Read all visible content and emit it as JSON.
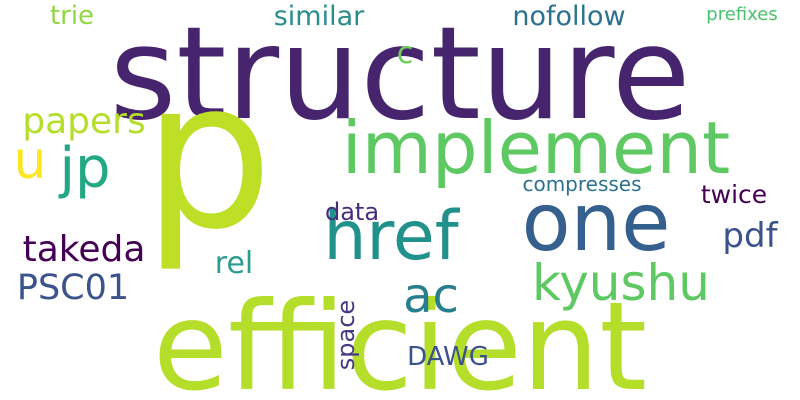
{
  "word_cloud": {
    "words": [
      {
        "text": "structure",
        "color": "#46246e"
      },
      {
        "text": "p",
        "color": "#bddf26"
      },
      {
        "text": "efficient",
        "color": "#b5de2b"
      },
      {
        "text": "implement",
        "color": "#5ec962"
      },
      {
        "text": "one",
        "color": "#355f8d"
      },
      {
        "text": "href",
        "color": "#21918c"
      },
      {
        "text": "kyushu",
        "color": "#5ec962"
      },
      {
        "text": "ac",
        "color": "#277f8e"
      },
      {
        "text": "jp",
        "color": "#22a884"
      },
      {
        "text": "papers",
        "color": "#b5de2b"
      },
      {
        "text": "takeda",
        "color": "#440154"
      },
      {
        "text": "PSC01",
        "color": "#3b528b"
      },
      {
        "text": "pdf",
        "color": "#3b528b"
      },
      {
        "text": "rel",
        "color": "#2a9d8f"
      },
      {
        "text": "data",
        "color": "#472d7b"
      },
      {
        "text": "twice",
        "color": "#440154"
      },
      {
        "text": "compresses",
        "color": "#2c728e"
      },
      {
        "text": "nofollow",
        "color": "#2c728e"
      },
      {
        "text": "similar",
        "color": "#2a8c8c"
      },
      {
        "text": "trie",
        "color": "#90d743"
      },
      {
        "text": "prefixes",
        "color": "#4ac16d"
      },
      {
        "text": "c",
        "color": "#6ccd5a"
      },
      {
        "text": "u",
        "color": "#fde725"
      },
      {
        "text": "space",
        "color": "#443a83"
      },
      {
        "text": "DAWG",
        "color": "#3b528b"
      }
    ]
  }
}
